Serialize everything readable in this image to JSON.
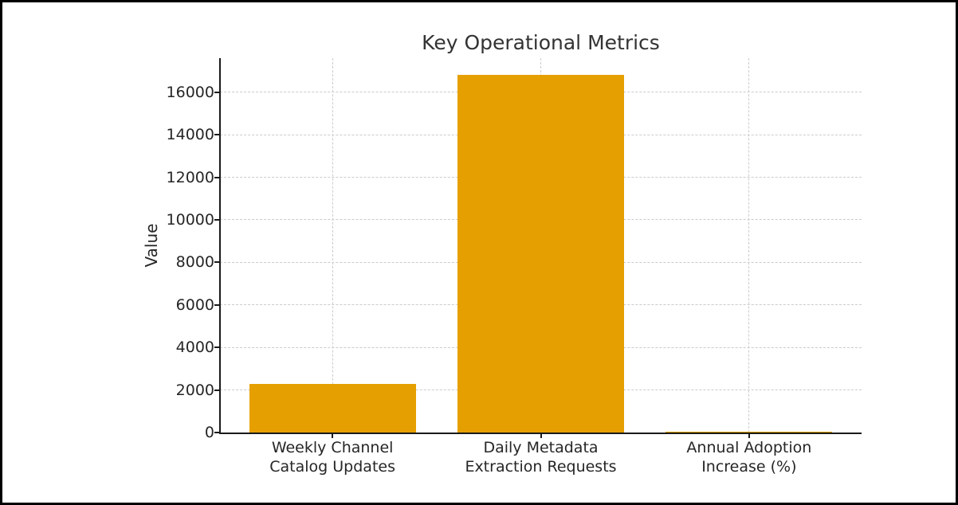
{
  "figure": {
    "background": "#ffffff",
    "border_color": "#000000"
  },
  "chart_data": {
    "type": "bar",
    "title": "Key Operational Metrics",
    "xlabel": "",
    "ylabel": "Value",
    "categories": [
      "Weekly Channel Catalog Updates",
      "Daily Metadata Extraction Requests",
      "Annual Adoption Increase (%)"
    ],
    "category_lines": [
      [
        "Weekly Channel",
        "Catalog Updates"
      ],
      [
        "Daily Metadata",
        "Extraction Requests"
      ],
      [
        "Annual Adoption",
        "Increase (%)"
      ]
    ],
    "values": [
      2300,
      16800,
      50
    ],
    "bar_color": "#E69F00",
    "yticks": [
      0,
      2000,
      4000,
      6000,
      8000,
      10000,
      12000,
      14000,
      16000
    ],
    "ylim": [
      0,
      17600
    ],
    "grid": "dashed",
    "grid_color": "#cccccc",
    "spine_color": "#1a1a1a",
    "text_color": "#262626",
    "legend": "none"
  }
}
